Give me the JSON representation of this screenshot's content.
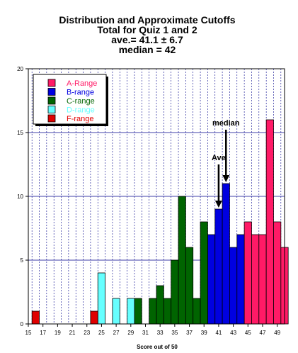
{
  "chart_data": {
    "type": "bar",
    "title": [
      "Distribution and Approximate Cutoffs",
      "Total for Quiz 1 and 2",
      "ave.= 41.1 ± 6.7",
      "median = 42"
    ],
    "xlabel": "Score out of 50",
    "ylabel": "",
    "xlim": [
      15,
      50
    ],
    "ylim": [
      0,
      20
    ],
    "grid": true,
    "legend_position": "top-left",
    "x_ticks": [
      15,
      17,
      19,
      21,
      23,
      25,
      27,
      29,
      31,
      33,
      35,
      37,
      39,
      41,
      43,
      45,
      47,
      49
    ],
    "y_ticks": [
      0,
      5,
      10,
      15,
      20
    ],
    "series": [
      {
        "name": "A-Range",
        "color": "#ff1a66",
        "x": [
          45,
          46,
          47,
          48,
          49,
          50
        ],
        "values": [
          8,
          7,
          7,
          16,
          8,
          6
        ]
      },
      {
        "name": "B-range",
        "color": "#0000e0",
        "x": [
          40,
          41,
          42,
          43,
          44
        ],
        "values": [
          7,
          9,
          11,
          6,
          7
        ]
      },
      {
        "name": "C-range",
        "color": "#006400",
        "x": [
          30,
          32,
          33,
          34,
          35,
          36,
          37,
          38,
          39
        ],
        "values": [
          2,
          2,
          3,
          2,
          5,
          10,
          6,
          2,
          8
        ]
      },
      {
        "name": "D-range",
        "color": "#66ffff",
        "x": [
          25,
          27,
          29
        ],
        "values": [
          4,
          2,
          2
        ]
      },
      {
        "name": "F-range",
        "color": "#e00000",
        "x": [
          16,
          24
        ],
        "values": [
          1,
          1
        ]
      }
    ],
    "annotations": [
      {
        "text": "Ave",
        "x": 41,
        "y": 9
      },
      {
        "text": "median",
        "x": 42,
        "y": 11
      }
    ]
  }
}
